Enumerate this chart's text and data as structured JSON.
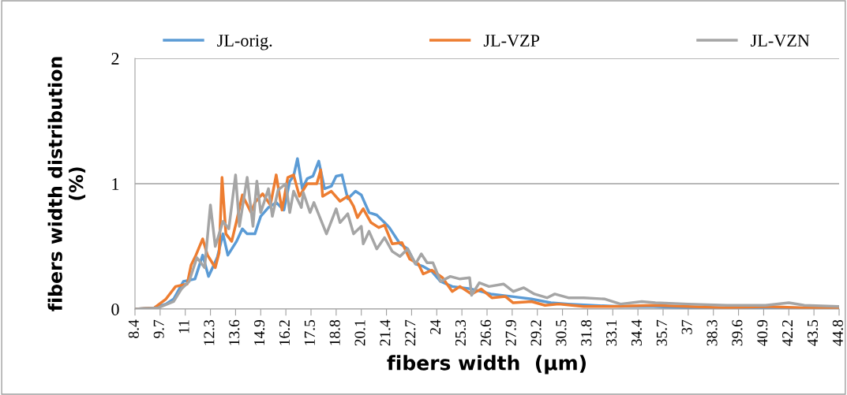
{
  "chart_data": {
    "type": "line",
    "xlabel": "fibers width  (µm)",
    "ylabel": "fibers width distribution\n(%)",
    "xlim": [
      8.4,
      44.8
    ],
    "xticks": [
      {
        "value": 8.4,
        "label": "8.4"
      },
      {
        "value": 9.7,
        "label": "9.7"
      },
      {
        "value": 11,
        "label": "11"
      },
      {
        "value": 12.3,
        "label": "12.3"
      },
      {
        "value": 13.6,
        "label": "13.6"
      },
      {
        "value": 14.9,
        "label": "14.9"
      },
      {
        "value": 16.2,
        "label": "16.2"
      },
      {
        "value": 17.5,
        "label": "17.5"
      },
      {
        "value": 18.8,
        "label": "18.8"
      },
      {
        "value": 20.1,
        "label": "20.1"
      },
      {
        "value": 21.4,
        "label": "21.4"
      },
      {
        "value": 22.7,
        "label": "22.7"
      },
      {
        "value": 24,
        "label": "24"
      },
      {
        "value": 25.3,
        "label": "25.3"
      },
      {
        "value": 26.6,
        "label": "26.6"
      },
      {
        "value": 27.9,
        "label": "27.9"
      },
      {
        "value": 29.2,
        "label": "29.2"
      },
      {
        "value": 30.5,
        "label": "30.5"
      },
      {
        "value": 31.8,
        "label": "31.8"
      },
      {
        "value": 33.1,
        "label": "33.1"
      },
      {
        "value": 34.4,
        "label": "34.4"
      },
      {
        "value": 35.7,
        "label": "35.7"
      },
      {
        "value": 37,
        "label": "37"
      },
      {
        "value": 38.3,
        "label": "38.3"
      },
      {
        "value": 39.6,
        "label": "39.6"
      },
      {
        "value": 40.9,
        "label": "40.9"
      },
      {
        "value": 42.2,
        "label": "42.2"
      },
      {
        "value": 43.5,
        "label": "43.5"
      },
      {
        "value": 44.8,
        "label": "44.8"
      }
    ],
    "ylim": [
      0,
      2
    ],
    "yticks": [
      0,
      1,
      2
    ],
    "grid": "y",
    "legend": "top",
    "marker": "none",
    "line_style": "solid",
    "series": [
      {
        "name": "JL-orig.",
        "color": "#5b9bd5",
        "x": [
          8.4,
          9.4,
          10.0,
          10.4,
          10.9,
          11.5,
          11.9,
          12.2,
          12.65,
          12.95,
          13.2,
          13.65,
          13.95,
          14.2,
          14.6,
          14.9,
          15.3,
          15.7,
          16.1,
          16.4,
          16.6,
          16.8,
          17.05,
          17.3,
          17.6,
          17.9,
          18.2,
          18.55,
          18.8,
          19.1,
          19.4,
          19.8,
          20.1,
          20.5,
          20.9,
          21.3,
          21.55,
          22.1,
          22.5,
          22.9,
          23.3,
          23.75,
          24.2,
          24.8,
          25.8,
          26.8,
          27.9,
          28.9,
          29.9,
          30.8,
          32.0,
          33.5,
          35.2,
          37.0,
          39.0,
          41.0,
          43.0,
          44.8
        ],
        "values": [
          0,
          0.01,
          0.04,
          0.08,
          0.22,
          0.24,
          0.43,
          0.26,
          0.41,
          0.6,
          0.43,
          0.54,
          0.64,
          0.6,
          0.6,
          0.74,
          0.81,
          0.85,
          0.79,
          1.02,
          1.06,
          1.2,
          0.96,
          1.04,
          1.06,
          1.18,
          0.96,
          0.98,
          1.06,
          1.07,
          0.88,
          0.94,
          0.91,
          0.77,
          0.75,
          0.69,
          0.65,
          0.52,
          0.48,
          0.36,
          0.34,
          0.3,
          0.22,
          0.18,
          0.16,
          0.12,
          0.1,
          0.08,
          0.05,
          0.04,
          0.03,
          0.02,
          0.02,
          0.01,
          0.01,
          0.01,
          0.01,
          0.01
        ]
      },
      {
        "name": "JL-VZP",
        "color": "#ed7d31",
        "x": [
          8.4,
          9.4,
          10.0,
          10.5,
          11.1,
          11.3,
          11.55,
          11.9,
          12.15,
          12.55,
          12.75,
          12.9,
          13.1,
          13.4,
          13.65,
          13.95,
          14.4,
          14.6,
          15.0,
          15.4,
          15.7,
          16.0,
          16.3,
          16.6,
          16.9,
          17.3,
          17.8,
          18.0,
          18.1,
          18.55,
          19.0,
          19.4,
          19.7,
          19.9,
          20.2,
          20.6,
          21.0,
          21.3,
          21.7,
          22.2,
          22.6,
          23.05,
          23.3,
          23.75,
          24.3,
          24.8,
          25.2,
          25.8,
          26.3,
          26.85,
          27.55,
          27.95,
          28.9,
          29.6,
          30.3,
          31.6,
          33.0,
          35.2,
          37.0,
          39.0,
          41.0,
          43.0,
          44.8
        ],
        "values": [
          0,
          0.01,
          0.08,
          0.18,
          0.2,
          0.35,
          0.43,
          0.56,
          0.43,
          0.33,
          0.45,
          1.05,
          0.6,
          0.54,
          0.7,
          0.91,
          0.77,
          0.85,
          0.92,
          0.83,
          1.07,
          0.79,
          1.05,
          1.07,
          0.9,
          1.0,
          1.0,
          1.11,
          0.9,
          0.94,
          0.86,
          0.9,
          0.82,
          0.73,
          0.8,
          0.69,
          0.65,
          0.67,
          0.52,
          0.53,
          0.4,
          0.36,
          0.28,
          0.31,
          0.25,
          0.14,
          0.18,
          0.12,
          0.16,
          0.09,
          0.1,
          0.05,
          0.06,
          0.03,
          0.04,
          0.02,
          0.02,
          0.03,
          0.02,
          0.01,
          0.02,
          0.01,
          0.01
        ]
      },
      {
        "name": "JL-VZN",
        "color": "#a5a5a5",
        "x": [
          8.4,
          9.6,
          10.4,
          10.8,
          11.2,
          11.6,
          12.0,
          12.3,
          12.55,
          12.95,
          13.25,
          13.6,
          13.8,
          14.2,
          14.5,
          14.7,
          14.9,
          15.3,
          15.5,
          15.8,
          16.2,
          16.4,
          16.6,
          17.0,
          17.1,
          17.45,
          17.65,
          18.3,
          18.8,
          19.0,
          19.4,
          19.7,
          20.1,
          20.2,
          20.5,
          20.9,
          21.3,
          21.7,
          22.1,
          22.5,
          22.9,
          23.2,
          23.5,
          23.8,
          24.2,
          24.7,
          25.2,
          25.7,
          25.8,
          26.2,
          26.7,
          27.45,
          27.95,
          28.5,
          29.05,
          29.7,
          30.1,
          30.8,
          31.6,
          32.7,
          33.5,
          34.6,
          35.3,
          37.0,
          39.0,
          41.0,
          42.2,
          43.0,
          44.8
        ],
        "values": [
          0,
          0.01,
          0.06,
          0.16,
          0.22,
          0.41,
          0.33,
          0.83,
          0.5,
          0.7,
          0.64,
          1.07,
          0.66,
          1.05,
          0.66,
          1.02,
          0.77,
          0.96,
          0.74,
          0.95,
          1.0,
          0.77,
          0.94,
          0.81,
          0.93,
          0.77,
          0.85,
          0.6,
          0.8,
          0.69,
          0.76,
          0.6,
          0.66,
          0.52,
          0.62,
          0.48,
          0.57,
          0.46,
          0.42,
          0.48,
          0.36,
          0.44,
          0.37,
          0.37,
          0.22,
          0.26,
          0.24,
          0.25,
          0.11,
          0.21,
          0.18,
          0.2,
          0.14,
          0.17,
          0.12,
          0.09,
          0.12,
          0.09,
          0.09,
          0.08,
          0.04,
          0.06,
          0.05,
          0.04,
          0.03,
          0.03,
          0.05,
          0.03,
          0.02
        ]
      }
    ]
  }
}
